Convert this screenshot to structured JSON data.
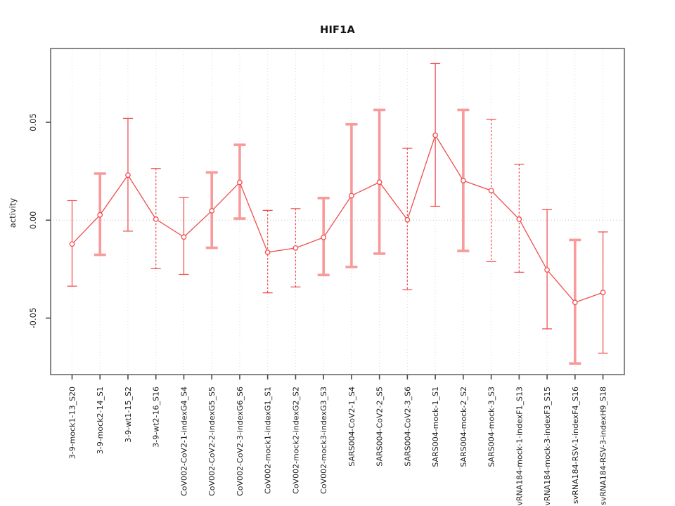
{
  "chart_data": {
    "type": "line",
    "title": "HIF1A",
    "xlabel": "",
    "ylabel": "activity",
    "ylim": [
      -0.079,
      0.088
    ],
    "yticks": [
      0.05,
      0.0,
      -0.05
    ],
    "ytick_labels": [
      "0.05",
      "0.00",
      "-0.05"
    ],
    "grid": {
      "vertical": "dotted light gray at every category",
      "horizontal": "dotted line at y=0 only"
    },
    "legend_position": "none",
    "colors": {
      "series": "#f04d4d",
      "thick_bar": "#f79a9a",
      "grid": "#dcdcdc",
      "zero_line": "#c4c4c4",
      "box_border": "#878787",
      "tick": "#4a4a4a",
      "text": "#1f1f1f"
    },
    "categories": [
      "3-9-mock1-13_S20",
      "3-9-mock2-14_S1",
      "3-9-wt1-15_S2",
      "3-9-wt2-16_S16",
      "CoV002-CoV2-1-indexG4_S4",
      "CoV002-CoV2-2-indexG5_S5",
      "CoV002-CoV2-3-indexG6_S6",
      "CoV002-mock1-indexG1_S1",
      "CoV002-mock2-indexG2_S2",
      "CoV002-mock3-indexG3_S3",
      "SARS004-CoV2-1_S4",
      "SARS004-CoV2-2_S5",
      "SARS004-CoV2-3_S6",
      "SARS004-mock-1_S1",
      "SARS004-mock-2_S2",
      "SARS004-mock-3_S3",
      "svRNA184-mock-1-indexF1_S13",
      "svRNA184-mock-3-indexF3_S15",
      "svRNA184-RSV-1-indexF4_S16",
      "svRNA184-RSV-3-indexH9_S18"
    ],
    "series": [
      {
        "name": "activity",
        "marker": "open-circle",
        "values": [
          -0.0122,
          0.0027,
          0.023,
          0.0005,
          -0.0086,
          0.0048,
          0.0193,
          -0.0164,
          -0.0142,
          -0.0088,
          0.0125,
          0.0194,
          0.0002,
          0.0434,
          0.0202,
          0.0151,
          0.0005,
          -0.0254,
          -0.042,
          -0.0369
        ],
        "ci_low": [
          -0.0337,
          -0.0177,
          -0.0056,
          -0.0248,
          -0.0277,
          -0.0141,
          0.0008,
          -0.0371,
          -0.0341,
          -0.028,
          -0.0239,
          -0.0171,
          -0.0355,
          0.0071,
          -0.0157,
          -0.0212,
          -0.0266,
          -0.0555,
          -0.0732,
          -0.0679
        ],
        "ci_high": [
          0.01,
          0.0238,
          0.052,
          0.0264,
          0.0116,
          0.0244,
          0.0385,
          0.005,
          0.0059,
          0.0113,
          0.049,
          0.0563,
          0.0367,
          0.08,
          0.0563,
          0.0515,
          0.0286,
          0.0054,
          -0.0101,
          -0.006
        ],
        "bar_styles": [
          "thin",
          "thick",
          "thin",
          "dashed",
          "thin",
          "thick",
          "thick",
          "dashed",
          "dashed",
          "thick",
          "thick",
          "thick",
          "dashed",
          "thin",
          "thick",
          "dashed",
          "dashed",
          "thin",
          "thick",
          "thin"
        ]
      }
    ]
  }
}
